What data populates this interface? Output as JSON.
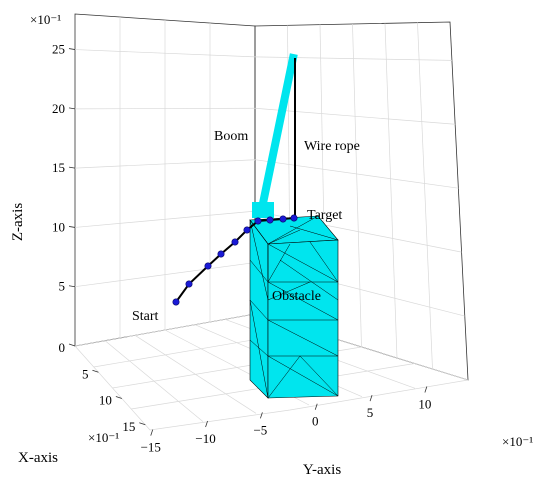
{
  "chart_data": {
    "type": "3d-line",
    "xlabel": "X-axis",
    "ylabel": "Y-axis",
    "zlabel": "Z-axis",
    "x_multiplier": "×10⁻¹",
    "y_multiplier": "×10⁻¹",
    "z_multiplier": "×10⁻¹",
    "x_ticks": [
      0,
      5,
      10,
      15
    ],
    "y_ticks": [
      -15,
      -10,
      -5,
      0,
      5,
      10
    ],
    "z_ticks": [
      5,
      10,
      15,
      20,
      25
    ],
    "colors": {
      "obstacle": "#00e5ee",
      "boom": "#00e5ee",
      "path": "#000000",
      "points": "#1a1ad6"
    },
    "annotations": {
      "boom": "Boom",
      "wire_rope": "Wire rope",
      "target": "Target",
      "start": "Start",
      "obstacle": "Obstacle"
    },
    "path_points_count": 10
  }
}
